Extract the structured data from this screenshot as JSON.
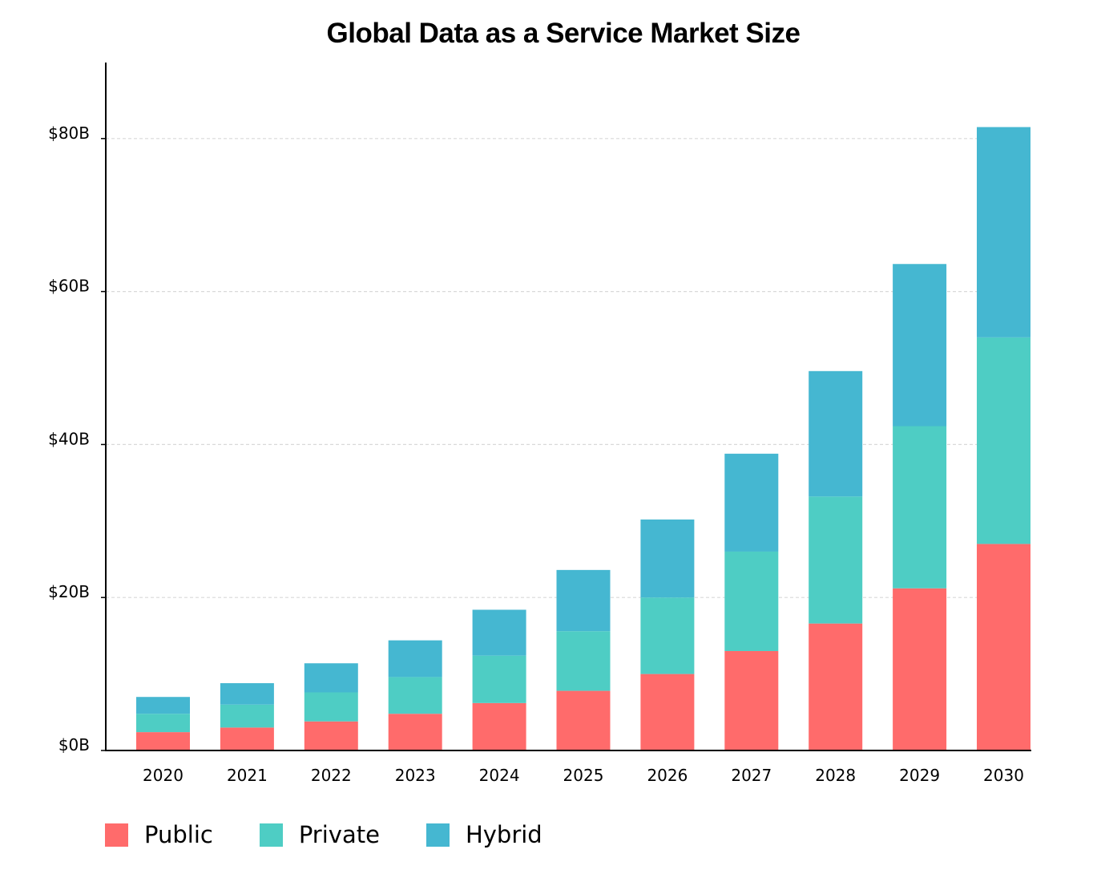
{
  "chart_data": {
    "type": "bar",
    "stacked": true,
    "title": "Global Data as a Service Market Size",
    "xlabel": "",
    "ylabel": "",
    "categories": [
      "2020",
      "2021",
      "2022",
      "2023",
      "2024",
      "2025",
      "2026",
      "2027",
      "2028",
      "2029",
      "2030"
    ],
    "series": [
      {
        "name": "Public",
        "color": "#ff6b6b",
        "values": [
          2.4,
          3.0,
          3.8,
          4.8,
          6.2,
          7.8,
          10.0,
          13.0,
          16.6,
          21.2,
          27.0
        ]
      },
      {
        "name": "Private",
        "color": "#4ecdc4",
        "values": [
          2.4,
          3.0,
          3.8,
          4.8,
          6.2,
          7.8,
          10.0,
          13.0,
          16.6,
          21.2,
          27.0
        ]
      },
      {
        "name": "Hybrid",
        "color": "#45b7d1",
        "values": [
          2.2,
          2.8,
          3.8,
          4.8,
          6.0,
          8.0,
          10.2,
          12.8,
          16.4,
          21.2,
          27.5
        ]
      }
    ],
    "ylim": [
      0,
      90
    ],
    "yticks": [
      0,
      20,
      40,
      60,
      80
    ],
    "ytick_labels": [
      "$0B",
      "$20B",
      "$40B",
      "$60B",
      "$80B"
    ],
    "grid": "horizontal-dashed",
    "legend_position": "bottom-left"
  }
}
